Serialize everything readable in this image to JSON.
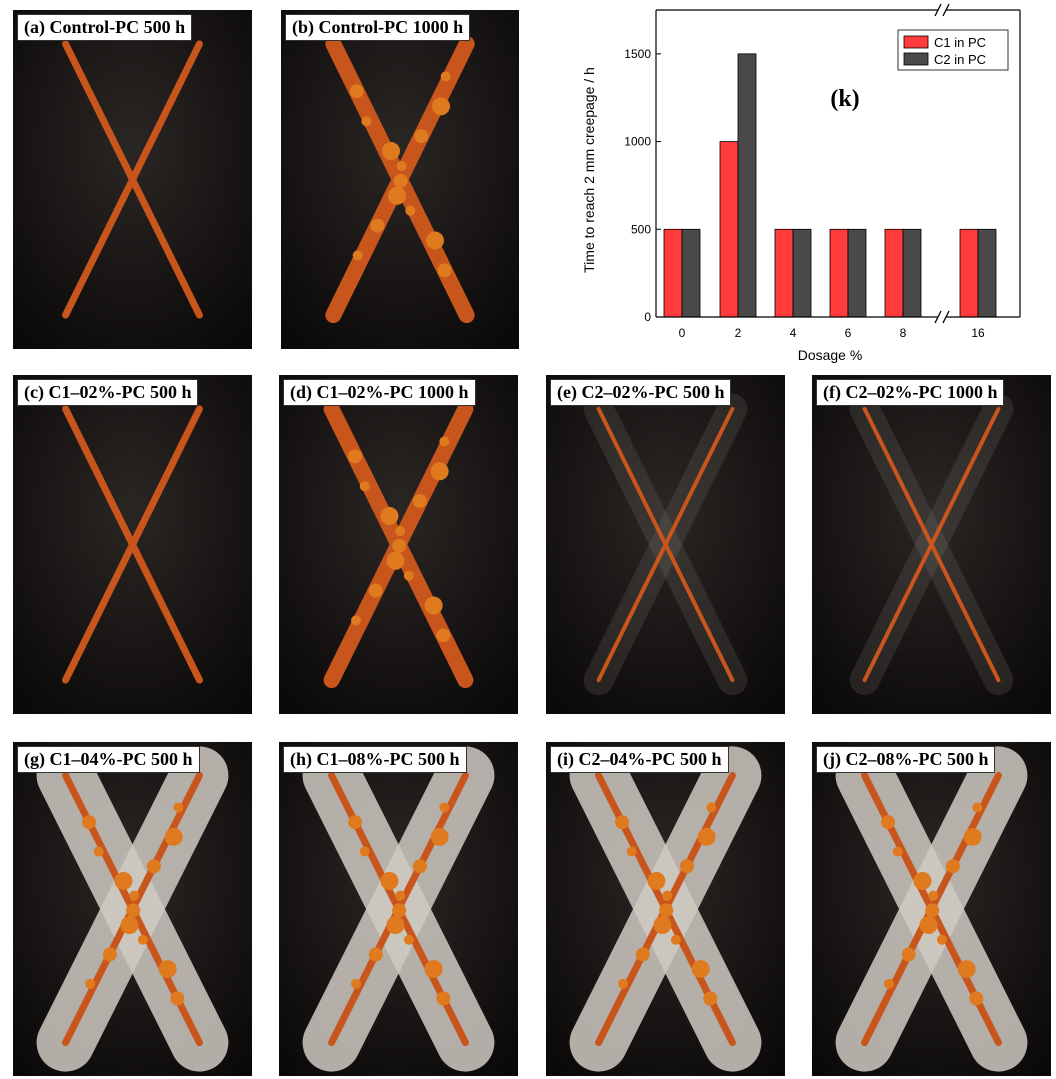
{
  "panels": [
    {
      "id": "a",
      "label": "(a) Control-PC 500 h",
      "stage": "early"
    },
    {
      "id": "b",
      "label": "(b) Control-PC 1000 h",
      "stage": "heavy"
    },
    {
      "id": "c",
      "label": "(c) C1–02%-PC 500 h",
      "stage": "early"
    },
    {
      "id": "d",
      "label": "(d) C1–02%-PC 1000 h",
      "stage": "heavy"
    },
    {
      "id": "e",
      "label": "(e) C2–02%-PC 500 h",
      "stage": "faint"
    },
    {
      "id": "f",
      "label": "(f) C2–02%-PC 1000 h",
      "stage": "faint"
    },
    {
      "id": "g",
      "label": "(g) C1–04%-PC 500 h",
      "stage": "blister"
    },
    {
      "id": "h",
      "label": "(h) C1–08%-PC 500 h",
      "stage": "blister"
    },
    {
      "id": "i",
      "label": "(i) C2–04%-PC 500 h",
      "stage": "blister"
    },
    {
      "id": "j",
      "label": "(j) C2–08%-PC 500 h",
      "stage": "blister"
    }
  ],
  "chart_data": {
    "type": "bar",
    "panel_label": "(k)",
    "categories": [
      "0",
      "2",
      "4",
      "6",
      "8",
      "16"
    ],
    "series": [
      {
        "name": "C1 in PC",
        "color": "#ff3b3b",
        "values": [
          500,
          1000,
          500,
          500,
          500,
          500
        ]
      },
      {
        "name": "C2 in PC",
        "color": "#4a4a4a",
        "values": [
          500,
          1500,
          500,
          500,
          500,
          500
        ]
      }
    ],
    "xlabel": "Dosage %",
    "ylabel": "Time to reach 2 mm creepage / h",
    "yticks": [
      0,
      500,
      1000,
      1500
    ],
    "ylim": [
      0,
      1750
    ],
    "axis_break": true,
    "legend_position": "top-right",
    "grid": false
  }
}
